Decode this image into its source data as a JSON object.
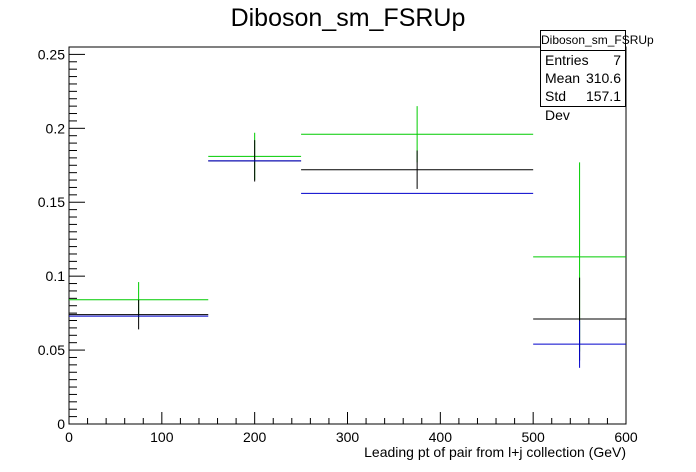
{
  "chart_data": {
    "type": "histogram",
    "title": "Diboson_sm_FSRUp",
    "xlabel": "Leading pt of pair from l+j collection (GeV)",
    "ylabel": "",
    "xlim": [
      0,
      600
    ],
    "ylim": [
      0,
      0.255
    ],
    "x_ticks": [
      0,
      100,
      200,
      300,
      400,
      500,
      600
    ],
    "x_tick_labels": [
      "0",
      "100",
      "200",
      "300",
      "400",
      "500",
      "600"
    ],
    "y_ticks": [
      0,
      0.05,
      0.1,
      0.15,
      0.2,
      0.25
    ],
    "y_tick_labels": [
      "0",
      "0.05",
      "0.1",
      "0.15",
      "0.2",
      "0.25"
    ],
    "bin_edges": [
      0,
      150,
      250,
      500,
      600
    ],
    "series": [
      {
        "color": "#00cc00",
        "values": [
          0.084,
          0.181,
          0.196,
          0.113
        ],
        "errors": [
          0.012,
          0.016,
          0.019,
          0.064
        ]
      },
      {
        "color": "#000000",
        "values": [
          0.074,
          0.178,
          0.172,
          0.071
        ],
        "errors": [
          0.01,
          0.014,
          0.013,
          0.028
        ]
      },
      {
        "color": "#0000cc",
        "values": [
          0.073,
          0.178,
          0.156,
          0.054
        ],
        "errors": [
          0.0,
          0.0,
          0.0,
          0.016
        ]
      }
    ],
    "stats_box": {
      "name": "Diboson_sm_FSRUp",
      "rows": [
        {
          "label": "Entries",
          "value": "7"
        },
        {
          "label": "Mean",
          "value": "310.6"
        },
        {
          "label": "Std Dev",
          "value": "157.1"
        }
      ]
    }
  }
}
